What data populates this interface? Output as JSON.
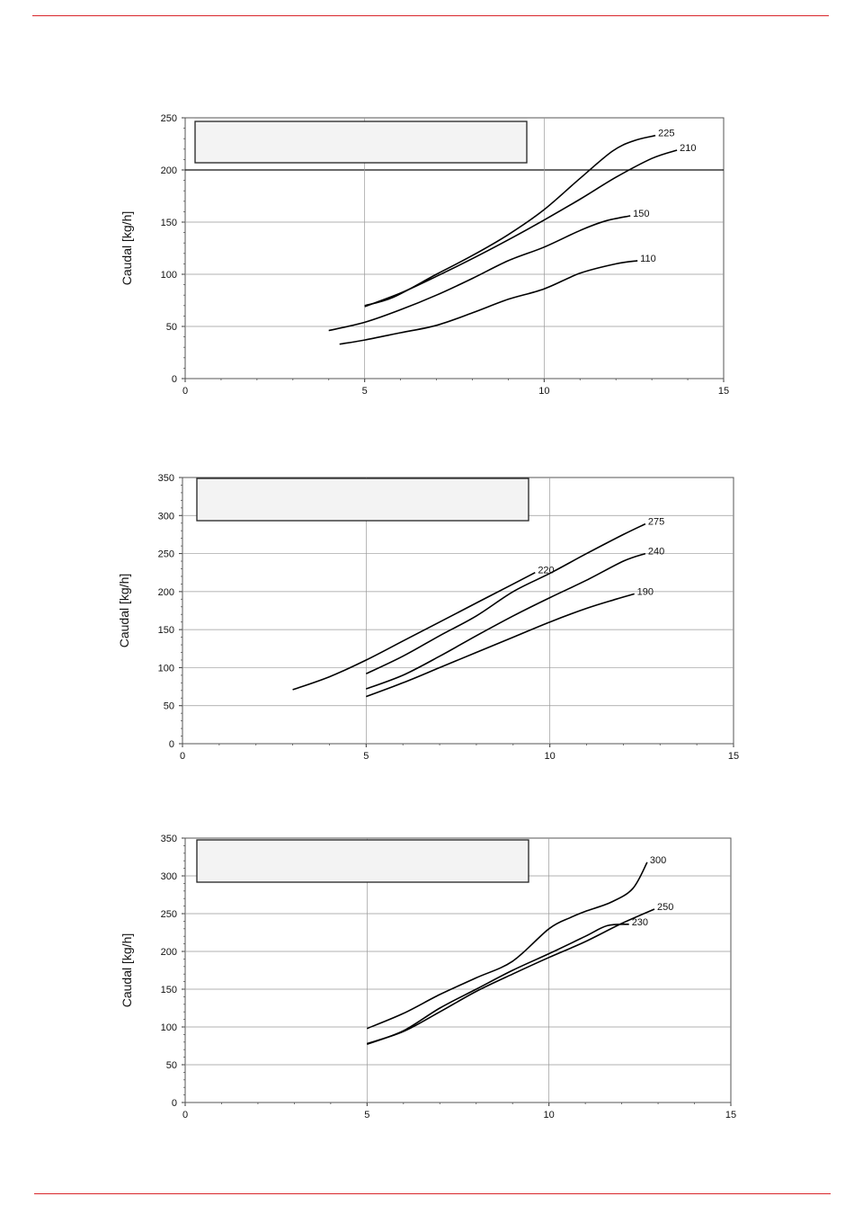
{
  "colors": {
    "rule": "#d9262b",
    "curve": "#000000",
    "grid": "#999999",
    "legend_fill": "#f3f3f3"
  },
  "chart_data": [
    {
      "type": "line",
      "ylabel": "Caudal [kg/h]",
      "xlim": [
        0,
        15
      ],
      "ylim": [
        0,
        250
      ],
      "x_ticks": [
        "0",
        "5",
        "10",
        "15"
      ],
      "y_ticks": [
        "0",
        "50",
        "100",
        "150",
        "200",
        "250"
      ],
      "legend_box_text": "",
      "series": [
        {
          "name": "225",
          "points": [
            [
              5,
              70
            ],
            [
              5.8,
              78
            ],
            [
              7,
              100
            ],
            [
              8,
              118
            ],
            [
              9,
              138
            ],
            [
              10,
              162
            ],
            [
              11,
              192
            ],
            [
              11.9,
              218
            ],
            [
              12.5,
              228
            ],
            [
              13.1,
              233
            ]
          ]
        },
        {
          "name": "210",
          "points": [
            [
              5,
              69
            ],
            [
              6,
              82
            ],
            [
              7,
              98
            ],
            [
              8,
              115
            ],
            [
              9,
              133
            ],
            [
              10,
              152
            ],
            [
              11,
              172
            ],
            [
              12,
              193
            ],
            [
              13,
              211
            ],
            [
              13.7,
              219
            ]
          ]
        },
        {
          "name": "150",
          "points": [
            [
              4,
              46
            ],
            [
              5,
              54
            ],
            [
              6,
              66
            ],
            [
              7,
              80
            ],
            [
              8,
              96
            ],
            [
              9,
              113
            ],
            [
              10,
              126
            ],
            [
              11,
              142
            ],
            [
              11.7,
              151
            ],
            [
              12.4,
              156
            ]
          ]
        },
        {
          "name": "110",
          "points": [
            [
              4.3,
              33
            ],
            [
              5,
              37
            ],
            [
              6,
              44
            ],
            [
              7,
              51
            ],
            [
              8,
              63
            ],
            [
              9,
              76
            ],
            [
              10,
              86
            ],
            [
              11,
              101
            ],
            [
              12,
              110
            ],
            [
              12.6,
              113
            ]
          ]
        }
      ]
    },
    {
      "type": "line",
      "ylabel": "Caudal [kg/h]",
      "xlim": [
        0,
        15
      ],
      "ylim": [
        0,
        350
      ],
      "x_ticks": [
        "0",
        "5",
        "10",
        "15"
      ],
      "y_ticks": [
        "0",
        "50",
        "100",
        "150",
        "200",
        "250",
        "300",
        "350"
      ],
      "legend_box_text": "",
      "series": [
        {
          "name": "275",
          "points": [
            [
              5,
              92
            ],
            [
              6,
              115
            ],
            [
              7,
              142
            ],
            [
              8,
              168
            ],
            [
              9,
              200
            ],
            [
              10,
              224
            ],
            [
              11,
              250
            ],
            [
              12,
              275
            ],
            [
              12.6,
              289
            ]
          ]
        },
        {
          "name": "240",
          "points": [
            [
              5,
              72
            ],
            [
              6,
              90
            ],
            [
              7,
              115
            ],
            [
              8,
              142
            ],
            [
              9,
              168
            ],
            [
              10,
              192
            ],
            [
              11,
              215
            ],
            [
              12,
              240
            ],
            [
              12.6,
              250
            ]
          ]
        },
        {
          "name": "220",
          "points": [
            [
              3,
              71
            ],
            [
              4,
              88
            ],
            [
              5,
              110
            ],
            [
              6,
              135
            ],
            [
              7,
              160
            ],
            [
              8,
              185
            ],
            [
              9,
              210
            ],
            [
              9.6,
              225
            ]
          ]
        },
        {
          "name": "190",
          "points": [
            [
              5,
              62
            ],
            [
              6,
              80
            ],
            [
              7,
              100
            ],
            [
              8,
              120
            ],
            [
              9,
              140
            ],
            [
              10,
              160
            ],
            [
              11,
              178
            ],
            [
              11.8,
              190
            ],
            [
              12.3,
              197
            ]
          ]
        }
      ]
    },
    {
      "type": "line",
      "ylabel": "Caudal [kg/h]",
      "xlim": [
        0,
        15
      ],
      "ylim": [
        0,
        350
      ],
      "x_ticks": [
        "0",
        "5",
        "10",
        "15"
      ],
      "y_ticks": [
        "0",
        "50",
        "100",
        "150",
        "200",
        "250",
        "300",
        "350"
      ],
      "legend_box_text": "",
      "series": [
        {
          "name": "300",
          "points": [
            [
              5,
              98
            ],
            [
              6,
              118
            ],
            [
              7,
              143
            ],
            [
              8,
              165
            ],
            [
              9,
              187
            ],
            [
              10,
              230
            ],
            [
              10.6,
              245
            ],
            [
              11,
              253
            ],
            [
              11.7,
              265
            ],
            [
              12.3,
              283
            ],
            [
              12.7,
              318
            ]
          ]
        },
        {
          "name": "250",
          "points": [
            [
              5,
              78
            ],
            [
              6,
              94
            ],
            [
              7,
              120
            ],
            [
              8,
              147
            ],
            [
              9,
              170
            ],
            [
              10,
              192
            ],
            [
              11,
              213
            ],
            [
              12,
              237
            ],
            [
              12.9,
              256
            ]
          ]
        },
        {
          "name": "230",
          "points": [
            [
              5,
              77
            ],
            [
              6,
              95
            ],
            [
              7,
              125
            ],
            [
              8,
              150
            ],
            [
              9,
              175
            ],
            [
              10,
              197
            ],
            [
              11,
              220
            ],
            [
              11.6,
              234
            ],
            [
              12.2,
              236
            ]
          ]
        }
      ]
    }
  ]
}
